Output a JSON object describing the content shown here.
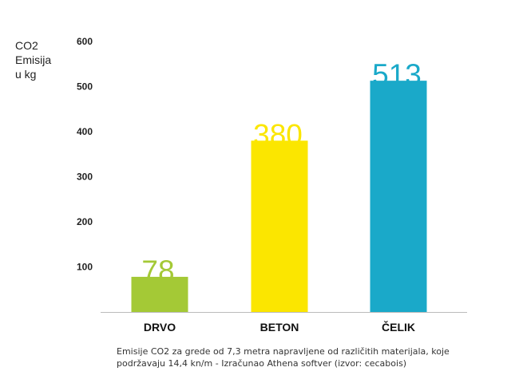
{
  "chart_data": {
    "type": "bar",
    "ylabel_lines": [
      "CO2",
      "Emisija",
      "u kg"
    ],
    "categories": [
      "DRVO",
      "BETON",
      "ČELIK"
    ],
    "values": [
      78,
      380,
      513
    ],
    "data_labels": [
      "78",
      "380",
      "513"
    ],
    "colors": [
      "#a4c936",
      "#fbe600",
      "#1aa9c9"
    ],
    "yticks": [
      100,
      200,
      300,
      400,
      500,
      600
    ],
    "ylim": [
      0,
      600
    ],
    "grid": false,
    "caption": "Emisije CO2 za grede od 7,3 metra napravljene od različitih materijala, koje podržavaju 14,4 kn/m - Izračunao Athena softver (izvor: cecabois)"
  }
}
